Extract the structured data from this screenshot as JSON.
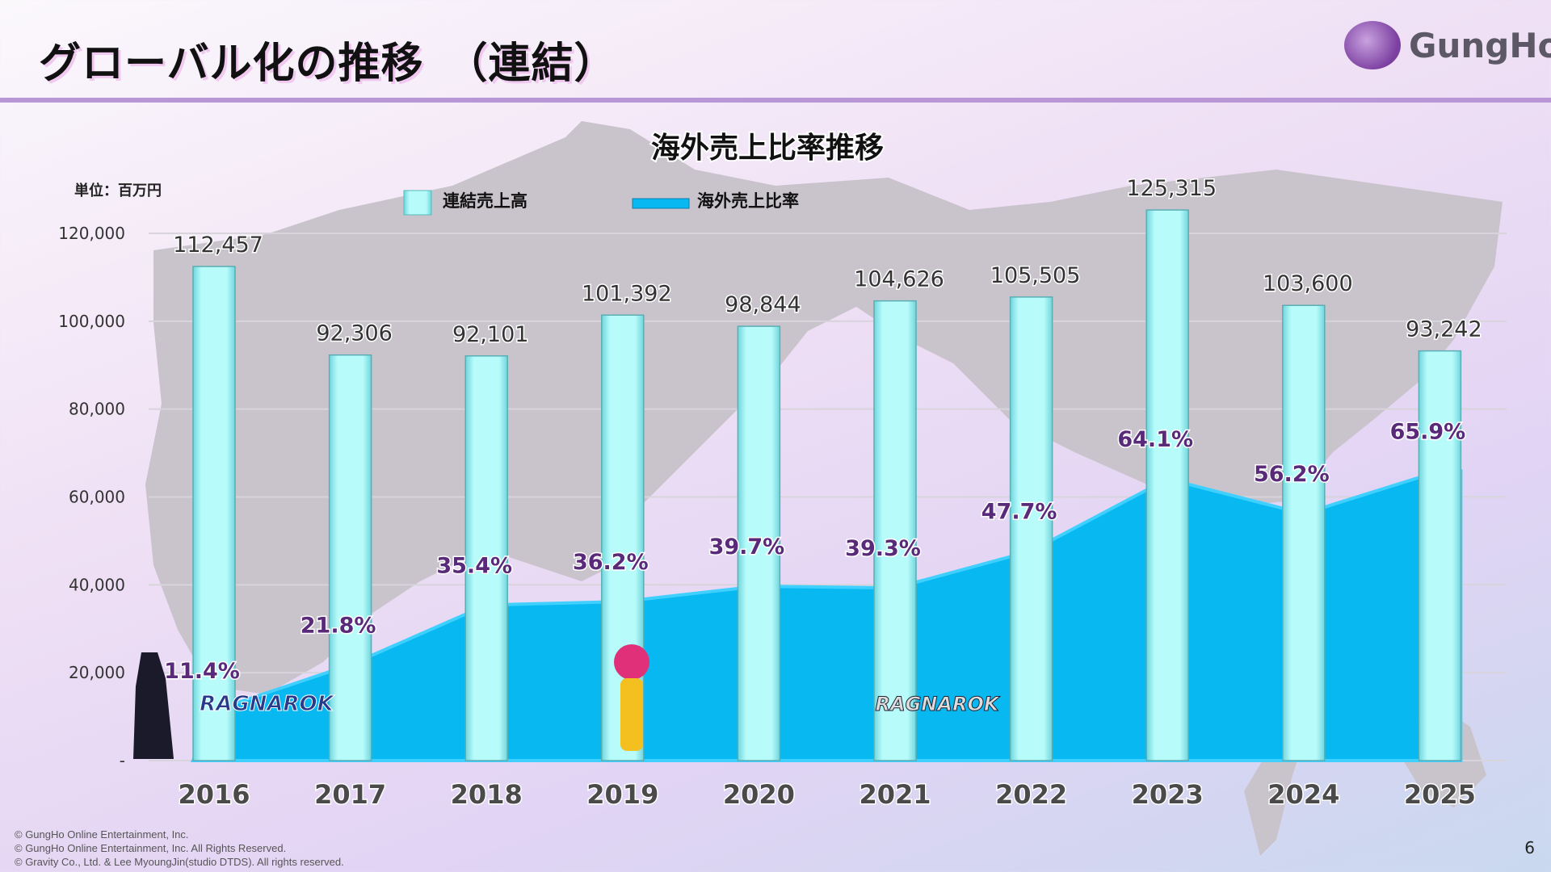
{
  "header": {
    "title": "グローバル化の推移　（連結）",
    "logo": "GungHo"
  },
  "chart_data": {
    "type": "bar+area",
    "title": "海外売上比率推移",
    "unit_label": "単位：百万円",
    "categories": [
      "2016",
      "2017",
      "2018",
      "2019",
      "2020",
      "2021",
      "2022",
      "2023",
      "2024",
      "2025"
    ],
    "series": [
      {
        "name": "連結売上高",
        "type": "bar",
        "values": [
          112457,
          92306,
          92101,
          101392,
          98844,
          104626,
          105505,
          125315,
          103600,
          93242
        ],
        "labels": [
          "112,457",
          "92,306",
          "92,101",
          "101,392",
          "98,844",
          "104,626",
          "105,505",
          "125,315",
          "103,600",
          "93,242"
        ]
      },
      {
        "name": "海外売上比率",
        "type": "area",
        "values": [
          11.4,
          21.8,
          35.4,
          36.2,
          39.7,
          39.3,
          47.7,
          64.1,
          56.2,
          65.9
        ],
        "labels": [
          "11.4%",
          "21.8%",
          "35.4%",
          "36.2%",
          "39.7%",
          "39.3%",
          "47.7%",
          "64.1%",
          "56.2%",
          "65.9%"
        ]
      }
    ],
    "ylim": [
      0,
      120000
    ],
    "y2lim": [
      0,
      120
    ],
    "yticks": [
      "-",
      "20,000",
      "40,000",
      "60,000",
      "80,000",
      "100,000",
      "120,000"
    ],
    "grid": true,
    "legend": "top-center",
    "colors": {
      "bar": "#a8f4f4",
      "area": "#08b8f0",
      "pct_label": "#5a2a7a"
    }
  },
  "footer": {
    "lines": [
      "© GungHo Online Entertainment, Inc.",
      "© GungHo Online Entertainment, Inc. All Rights Reserved.",
      "© Gravity Co., Ltd. & Lee MyoungJin(studio DTDS). All rights reserved."
    ],
    "page": "6"
  }
}
